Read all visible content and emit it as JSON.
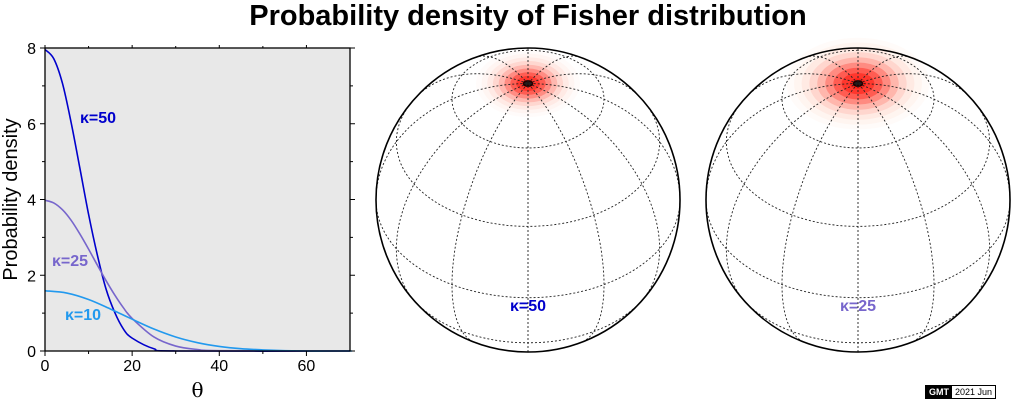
{
  "title": "Probability density of Fisher distribution",
  "stamp": {
    "logo": "GMT",
    "date": "2021 Jun"
  },
  "chart_data": [
    {
      "type": "line",
      "xlabel": "θ",
      "ylabel": "Probability density",
      "xlim": [
        0,
        70
      ],
      "ylim": [
        0,
        8
      ],
      "xticks": [
        0,
        20,
        40,
        60
      ],
      "yticks": [
        0,
        2,
        4,
        6,
        8
      ],
      "background": "#e8e8e8",
      "series": [
        {
          "name": "κ=50",
          "kappa": 50,
          "color": "#0000cc",
          "x": [
            0,
            2,
            4,
            6,
            8,
            10,
            12,
            14,
            16,
            18,
            20,
            25,
            30
          ],
          "y": [
            7.96,
            7.72,
            7.07,
            6.03,
            4.83,
            3.61,
            2.54,
            1.64,
            1.02,
            0.58,
            0.34,
            0.06,
            0.0
          ]
        },
        {
          "name": "κ=25",
          "kappa": 25,
          "color": "#7766cc",
          "x": [
            0,
            2,
            4,
            6,
            8,
            10,
            12,
            14,
            16,
            18,
            20,
            25,
            30,
            35,
            40
          ],
          "y": [
            3.98,
            3.91,
            3.73,
            3.45,
            3.09,
            2.69,
            2.27,
            1.86,
            1.48,
            1.14,
            0.86,
            0.37,
            0.13,
            0.04,
            0.01
          ]
        },
        {
          "name": "κ=10",
          "kappa": 10,
          "color": "#2299ee",
          "x": [
            0,
            5,
            10,
            15,
            20,
            25,
            30,
            35,
            40,
            45,
            50,
            55,
            60,
            65,
            70
          ],
          "y": [
            1.59,
            1.53,
            1.36,
            1.11,
            0.84,
            0.58,
            0.37,
            0.22,
            0.12,
            0.06,
            0.03,
            0.01,
            0.0,
            0.0,
            0.0
          ]
        }
      ]
    },
    {
      "type": "heatmap",
      "projection": "orthographic",
      "label": "κ=50",
      "kappa": 50,
      "label_color": "#0000cc"
    },
    {
      "type": "heatmap",
      "projection": "orthographic",
      "label": "κ=25",
      "kappa": 25,
      "label_color": "#7766cc"
    }
  ]
}
